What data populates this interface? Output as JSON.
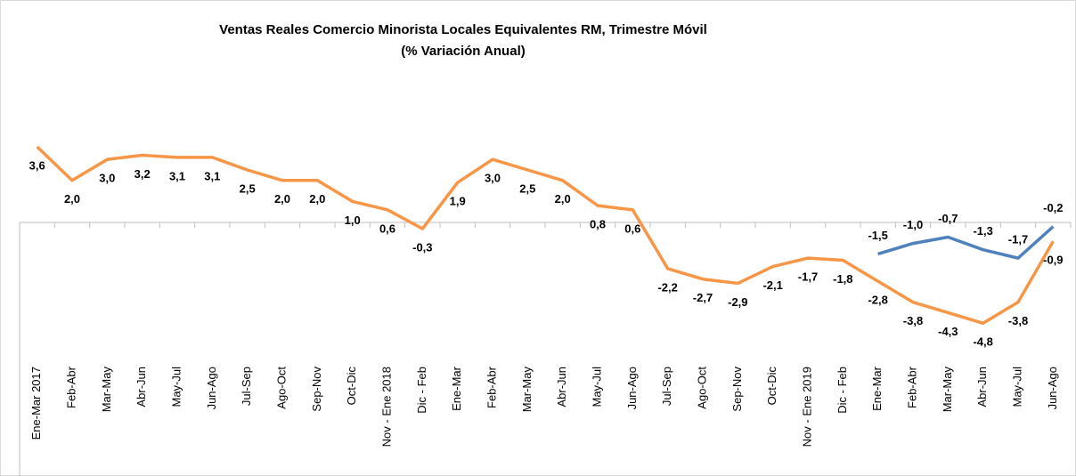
{
  "chart_data": {
    "type": "line",
    "title": "Ventas Reales Comercio Minorista Locales Equivalentes RM, Trimestre Móvil",
    "subtitle": "(% Variación Anual)",
    "categories": [
      "Ene-Mar 2017",
      "Feb-Abr",
      "Mar-May",
      "Abr-Jun",
      "May-Jul",
      "Jun-Ago",
      "Jul-Sep",
      "Ago-Oct",
      "Sep-Nov",
      "Oct-Dic",
      "Nov - Ene 2018",
      "Dic - Feb",
      "Ene-Mar",
      "Feb-Abr",
      "Mar-May",
      "Abr-Jun",
      "May-Jul",
      "Jun-Ago",
      "Jul-Sep",
      "Ago-Oct",
      "Sep-Nov",
      "Oct-Dic",
      "Nov - Ene 2019",
      "Dic - Feb",
      "Ene-Mar",
      "Feb-Abr",
      "Mar-May",
      "Abr-Jun",
      "May-Jul",
      "Jun-Ago"
    ],
    "series": [
      {
        "color": "#f79646",
        "label_position": "below",
        "values": [
          3.6,
          2.0,
          3.0,
          3.2,
          3.1,
          3.1,
          2.5,
          2.0,
          2.0,
          1.0,
          0.6,
          -0.3,
          1.9,
          3.0,
          2.5,
          2.0,
          0.8,
          0.6,
          -2.2,
          -2.7,
          -2.9,
          -2.1,
          -1.7,
          -1.8,
          -2.8,
          -3.8,
          -4.3,
          -4.8,
          -3.8,
          -0.9
        ],
        "value_labels": [
          "3,6",
          "2,0",
          "3,0",
          "3,2",
          "3,1",
          "3,1",
          "2,5",
          "2,0",
          "2,0",
          "1,0",
          "0,6",
          "-0,3",
          "1,9",
          "3,0",
          "2,5",
          "2,0",
          "0,8",
          "0,6",
          "-2,2",
          "-2,7",
          "-2,9",
          "-2,1",
          "-1,7",
          "-1,8",
          "-2,8",
          "-3,8",
          "-4,3",
          "-4,8",
          "-3,8",
          "-0,9"
        ]
      },
      {
        "color": "#4f81bd",
        "label_position": "above",
        "values": [
          null,
          null,
          null,
          null,
          null,
          null,
          null,
          null,
          null,
          null,
          null,
          null,
          null,
          null,
          null,
          null,
          null,
          null,
          null,
          null,
          null,
          null,
          null,
          null,
          -1.5,
          -1.0,
          -0.7,
          -1.3,
          -1.7,
          -0.2
        ],
        "value_labels": [
          null,
          null,
          null,
          null,
          null,
          null,
          null,
          null,
          null,
          null,
          null,
          null,
          null,
          null,
          null,
          null,
          null,
          null,
          null,
          null,
          null,
          null,
          null,
          null,
          "-1,5",
          "-1,0",
          "-0,7",
          "-1,3",
          "-1,7",
          "-0,2"
        ]
      }
    ]
  }
}
